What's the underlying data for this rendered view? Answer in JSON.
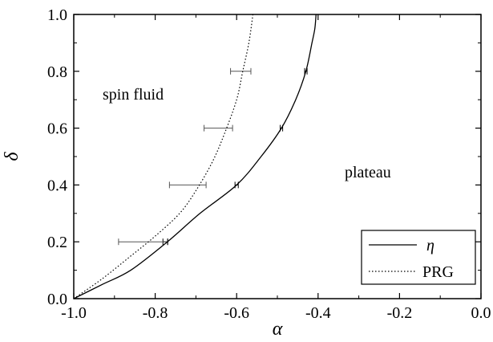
{
  "chart_data": {
    "type": "line",
    "xlabel": "α",
    "ylabel": "δ",
    "xlim": [
      -1.0,
      0.0
    ],
    "ylim": [
      0.0,
      1.0
    ],
    "grid": false,
    "legend_position": "bottom-right",
    "x_ticks": [
      "-1.0",
      "-0.8",
      "-0.6",
      "-0.4",
      "-0.2",
      "0.0"
    ],
    "y_ticks": [
      "0.0",
      "0.2",
      "0.4",
      "0.6",
      "0.8",
      "1.0"
    ],
    "annotations": [
      {
        "text": "spin fluid",
        "x": -0.83,
        "y": 0.75
      },
      {
        "text": "plateau",
        "x": -0.26,
        "y": 0.42
      }
    ],
    "series": [
      {
        "name": "η",
        "style": "solid",
        "x": [
          -1.0,
          -0.93,
          -0.86,
          -0.77,
          -0.69,
          -0.6,
          -0.54,
          -0.49,
          -0.455,
          -0.43,
          -0.415,
          -0.408,
          -0.405
        ],
        "y": [
          0.0,
          0.05,
          0.1,
          0.2,
          0.3,
          0.4,
          0.5,
          0.6,
          0.7,
          0.8,
          0.9,
          0.95,
          1.0
        ],
        "error_points": [
          {
            "x": -0.775,
            "y": 0.2,
            "xerr": 0.006
          },
          {
            "x": -0.6,
            "y": 0.4,
            "xerr": 0.004
          },
          {
            "x": -0.49,
            "y": 0.6,
            "xerr": 0.003
          },
          {
            "x": -0.43,
            "y": 0.8,
            "xerr": 0.003
          }
        ]
      },
      {
        "name": "PRG",
        "style": "dotted",
        "x": [
          -1.0,
          -0.93,
          -0.86,
          -0.8,
          -0.74,
          -0.7,
          -0.66,
          -0.63,
          -0.6,
          -0.585,
          -0.57,
          -0.56
        ],
        "y": [
          0.0,
          0.07,
          0.15,
          0.22,
          0.3,
          0.38,
          0.48,
          0.58,
          0.7,
          0.8,
          0.9,
          1.0
        ],
        "error_points": [
          {
            "x": -0.83,
            "y": 0.2,
            "xerr": 0.06
          },
          {
            "x": -0.72,
            "y": 0.4,
            "xerr": 0.045
          },
          {
            "x": -0.645,
            "y": 0.6,
            "xerr": 0.035
          },
          {
            "x": -0.59,
            "y": 0.8,
            "xerr": 0.025
          }
        ]
      }
    ]
  }
}
